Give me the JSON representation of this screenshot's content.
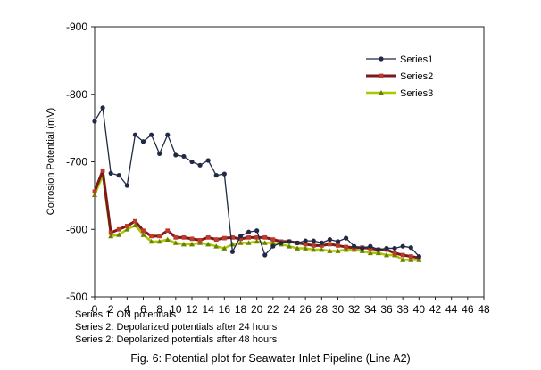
{
  "chart_data": {
    "type": "line",
    "title": "",
    "xlabel": "",
    "ylabel": "Corrosion Potential (mV)",
    "xlim": [
      0,
      48
    ],
    "ylim": [
      -500,
      -900
    ],
    "x_ticks": [
      0,
      2,
      4,
      6,
      8,
      10,
      12,
      14,
      16,
      18,
      20,
      22,
      24,
      26,
      28,
      30,
      32,
      34,
      36,
      38,
      40,
      42,
      44,
      46,
      48
    ],
    "y_ticks": [
      -900,
      -800,
      -700,
      -600,
      -500
    ],
    "legend_position": "top-right",
    "series": [
      {
        "name": "Series1",
        "color": "#1f2a44",
        "marker": "circle",
        "x": [
          0,
          1,
          2,
          3,
          4,
          5,
          6,
          7,
          8,
          9,
          10,
          11,
          12,
          13,
          14,
          15,
          16,
          17,
          18,
          19,
          20,
          21,
          22,
          23,
          24,
          25,
          26,
          27,
          28,
          29,
          30,
          31,
          32,
          33,
          34,
          35,
          36,
          37,
          38,
          39,
          40
        ],
        "y": [
          -760,
          -780,
          -683,
          -680,
          -665,
          -740,
          -730,
          -740,
          -712,
          -740,
          -710,
          -708,
          -700,
          -695,
          -702,
          -680,
          -682,
          -567,
          -590,
          -596,
          -598,
          -562,
          -575,
          -580,
          -582,
          -580,
          -583,
          -583,
          -580,
          -585,
          -582,
          -587,
          -575,
          -572,
          -575,
          -570,
          -572,
          -572,
          -575,
          -573,
          -560
        ]
      },
      {
        "name": "Series2",
        "color": "#7a1a1a",
        "marker": "square",
        "x": [
          0,
          1,
          2,
          3,
          4,
          5,
          6,
          7,
          8,
          9,
          10,
          11,
          12,
          13,
          14,
          15,
          16,
          17,
          18,
          19,
          20,
          21,
          22,
          23,
          24,
          25,
          26,
          27,
          28,
          29,
          30,
          31,
          32,
          33,
          34,
          35,
          36,
          37,
          38,
          39,
          40
        ],
        "y": [
          -656,
          -687,
          -595,
          -600,
          -605,
          -612,
          -598,
          -590,
          -590,
          -598,
          -588,
          -588,
          -586,
          -584,
          -588,
          -585,
          -587,
          -588,
          -586,
          -588,
          -588,
          -588,
          -585,
          -582,
          -582,
          -580,
          -578,
          -576,
          -576,
          -578,
          -576,
          -574,
          -573,
          -573,
          -572,
          -570,
          -570,
          -565,
          -562,
          -560,
          -558
        ]
      },
      {
        "name": "Series3",
        "color": "#a8c800",
        "marker": "triangle",
        "x": [
          0,
          1,
          2,
          3,
          4,
          5,
          6,
          7,
          8,
          9,
          10,
          11,
          12,
          13,
          14,
          15,
          16,
          17,
          18,
          19,
          20,
          21,
          22,
          23,
          24,
          25,
          26,
          27,
          28,
          29,
          30,
          31,
          32,
          33,
          34,
          35,
          36,
          37,
          38,
          39,
          40
        ],
        "y": [
          -651,
          -680,
          -590,
          -592,
          -600,
          -606,
          -592,
          -582,
          -582,
          -585,
          -580,
          -578,
          -578,
          -580,
          -578,
          -575,
          -572,
          -578,
          -580,
          -580,
          -582,
          -580,
          -580,
          -578,
          -575,
          -572,
          -572,
          -570,
          -570,
          -568,
          -568,
          -570,
          -570,
          -568,
          -565,
          -565,
          -562,
          -562,
          -555,
          -555,
          -555
        ]
      }
    ]
  },
  "notes": [
    "Series 1: ON potentials",
    "Series 2: Depolarized potentials after 24 hours",
    "Series 2: Depolarized potentials after 48 hours"
  ],
  "caption": "Fig. 6: Potential plot for Seawater Inlet Pipeline (Line A2)"
}
